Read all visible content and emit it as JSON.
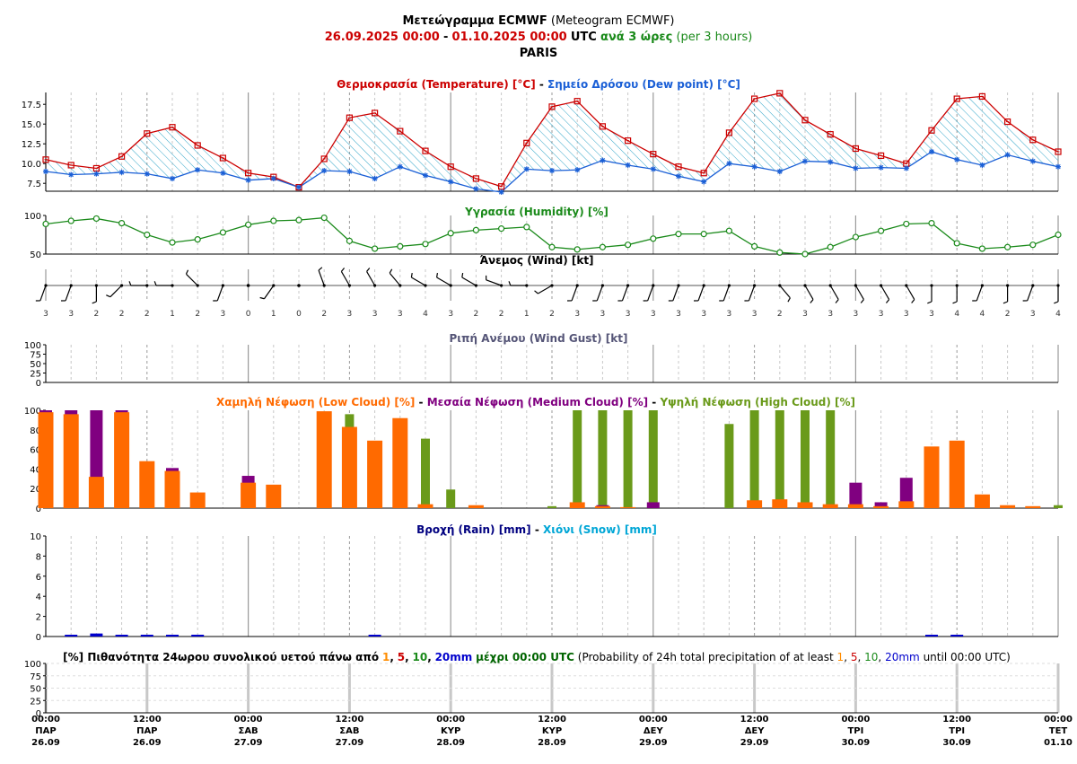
{
  "header": {
    "title_bold": "Μετεώγραμμα ECMWF",
    "title_rest": "(Meteogram ECMWF)",
    "date_start": "26.09.2025 00:00",
    "sep": "-",
    "date_end": "01.10.2025 00:00",
    "utc": "UTC",
    "interval_bold": "ανά 3 ώρες",
    "interval_rest": "(per 3 hours)",
    "location": "PARIS"
  },
  "colors": {
    "temperature": "#cc0000",
    "dewpoint": "#1a5fd6",
    "humidity": "#1a8a1a",
    "hatch": "#33a6c9",
    "low_cloud": "#ff6a00",
    "medium_cloud": "#800080",
    "high_cloud": "#6a9a1a",
    "rain": "#0000cc",
    "gust_title": "#555577"
  },
  "time_axis": {
    "tick_labels": [
      {
        "time": "00:00",
        "day": "ΠΑΡ",
        "date": "26.09"
      },
      {
        "time": "12:00",
        "day": "ΠΑΡ",
        "date": "26.09"
      },
      {
        "time": "00:00",
        "day": "ΣΑΒ",
        "date": "27.09"
      },
      {
        "time": "12:00",
        "day": "ΣΑΒ",
        "date": "27.09"
      },
      {
        "time": "00:00",
        "day": "ΚΥΡ",
        "date": "28.09"
      },
      {
        "time": "12:00",
        "day": "ΚΥΡ",
        "date": "28.09"
      },
      {
        "time": "00:00",
        "day": "ΔΕΥ",
        "date": "29.09"
      },
      {
        "time": "12:00",
        "day": "ΔΕΥ",
        "date": "29.09"
      },
      {
        "time": "00:00",
        "day": "ΤΡΙ",
        "date": "30.09"
      },
      {
        "time": "12:00",
        "day": "ΤΡΙ",
        "date": "30.09"
      },
      {
        "time": "00:00",
        "day": "ΤΕΤ",
        "date": "01.10"
      }
    ]
  },
  "chart_data": [
    {
      "type": "line",
      "title_a": "Θερμοκρασία (Temperature) [°C]",
      "title_sep": "-",
      "title_b": "Σημείο Δρόσου (Dew point) [°C]",
      "ylim": [
        6.5,
        19
      ],
      "yticks": [
        7.5,
        10.0,
        12.5,
        15.0,
        17.5
      ],
      "ytick_labels": [
        "7.5",
        "10.0",
        "12.5",
        "15.0",
        "17.5"
      ],
      "series": [
        {
          "values": [
            10.5,
            9.8,
            9.4,
            10.9,
            13.8,
            14.6,
            12.3,
            10.7,
            8.8,
            8.3,
            7.0,
            10.6,
            15.8,
            16.4,
            14.1,
            11.6,
            9.6,
            8.1,
            7.1,
            12.6,
            17.2,
            17.9,
            14.7,
            12.9,
            11.2,
            9.6,
            8.8,
            13.9,
            18.2,
            18.9,
            15.5,
            13.7,
            11.9,
            11.0,
            10.0,
            14.2,
            18.2,
            18.5,
            15.3,
            13.0,
            11.5
          ]
        },
        {
          "values": [
            9.0,
            8.6,
            8.7,
            8.9,
            8.7,
            8.1,
            9.2,
            8.8,
            7.9,
            8.1,
            7.0,
            9.1,
            9.0,
            8.1,
            9.6,
            8.5,
            7.7,
            6.8,
            6.4,
            9.3,
            9.1,
            9.2,
            10.4,
            9.8,
            9.3,
            8.4,
            7.7,
            10.0,
            9.6,
            9.0,
            10.3,
            10.2,
            9.4,
            9.5,
            9.4,
            11.5,
            10.5,
            9.8,
            11.1,
            10.3,
            9.6
          ]
        }
      ]
    },
    {
      "type": "line",
      "title": "Υγρασία (Humidity) [%]",
      "ylim": [
        50,
        100
      ],
      "ytick_labels": [
        "100",
        "50"
      ],
      "values": [
        89,
        93,
        96,
        90,
        75,
        65,
        69,
        78,
        88,
        93,
        94,
        97,
        67,
        57,
        60,
        63,
        77,
        81,
        83,
        85,
        59,
        56,
        59,
        62,
        70,
        76,
        76,
        80,
        60,
        52,
        50,
        59,
        72,
        80,
        89,
        90,
        64,
        57,
        59,
        62,
        75
      ]
    },
    {
      "type": "scatter",
      "title": "Άνεμος (Wind) [kt]",
      "speeds": [
        "3",
        "3",
        "2",
        "2",
        "2",
        "1",
        "2",
        "3",
        "0",
        "1",
        "0",
        "2",
        "3",
        "3",
        "3",
        "4",
        "3",
        "2",
        "2",
        "1",
        "2",
        "3",
        "3",
        "3",
        "3",
        "3",
        "3",
        "3",
        "3",
        "2",
        "3",
        "3",
        "3",
        "3",
        "3",
        "3",
        "4",
        "4",
        "2",
        "3",
        "4"
      ],
      "directions_deg": [
        200,
        200,
        180,
        225,
        270,
        270,
        315,
        200,
        0,
        215,
        0,
        340,
        330,
        330,
        320,
        300,
        300,
        300,
        290,
        270,
        240,
        200,
        200,
        200,
        200,
        200,
        200,
        200,
        200,
        140,
        150,
        150,
        150,
        150,
        150,
        180,
        180,
        200,
        180,
        200,
        180
      ]
    },
    {
      "type": "bar",
      "title": "Ριπή Ανέμου (Wind Gust) [kt]",
      "ylim": [
        0,
        100
      ],
      "ytick_labels": [
        "100",
        "75",
        "50",
        "25",
        "0"
      ],
      "values": []
    },
    {
      "type": "bar",
      "title_low": "Χαμηλή Νέφωση (Low Cloud) [%]",
      "title_mid": "Μεσαία Νέφωση (Medium Cloud) [%]",
      "title_high": "Υψηλή Νέφωση (High Cloud) [%]",
      "title_sep": "-",
      "ylim": [
        0,
        100
      ],
      "ytick_labels": [
        "100",
        "80",
        "60",
        "40",
        "20",
        "0"
      ],
      "series": [
        {
          "values": [
            98,
            96,
            32,
            98,
            48,
            38,
            16,
            0,
            26,
            24,
            0,
            99,
            83,
            69,
            92,
            4,
            0,
            3,
            0,
            0,
            0,
            6,
            2,
            1,
            0,
            0,
            0,
            0,
            8,
            9,
            6,
            4,
            4,
            2,
            7,
            63,
            69,
            14,
            3,
            2,
            0
          ]
        },
        {
          "values": [
            100,
            100,
            100,
            100,
            0,
            41,
            0,
            0,
            33,
            0,
            0,
            0,
            0,
            0,
            0,
            0,
            0,
            0,
            0,
            0,
            0,
            0,
            3,
            0,
            6,
            0,
            0,
            0,
            0,
            0,
            0,
            0,
            26,
            6,
            31,
            0,
            0,
            0,
            0,
            0,
            0
          ]
        },
        {
          "values": [
            0,
            0,
            0,
            0,
            0,
            0,
            0,
            0,
            0,
            0,
            0,
            0,
            96,
            0,
            0,
            71,
            19,
            0,
            0,
            0,
            2,
            100,
            100,
            100,
            100,
            0,
            0,
            86,
            100,
            100,
            100,
            100,
            0,
            0,
            0,
            0,
            0,
            0,
            0,
            0,
            3
          ]
        }
      ]
    },
    {
      "type": "bar",
      "title_rain": "Βροχή (Rain) [mm]",
      "title_sep": "-",
      "title_snow": "Χιόνι (Snow) [mm]",
      "ylim": [
        0,
        10
      ],
      "ytick_labels": [
        "10",
        "8",
        "6",
        "4",
        "2",
        "0"
      ],
      "values": [
        0,
        0.15,
        0.3,
        0.1,
        0.1,
        0.15,
        0.1,
        0,
        0,
        0,
        0,
        0,
        0,
        0.05,
        0,
        0,
        0,
        0,
        0,
        0,
        0,
        0,
        0,
        0,
        0,
        0,
        0,
        0,
        0,
        0,
        0,
        0,
        0,
        0,
        0,
        0.05,
        0.05,
        0,
        0,
        0,
        0
      ]
    },
    {
      "type": "bar",
      "title_bold": "[%] Πιθανότητα 24ωρου συνολικού υετού πάνω από",
      "title_rest": "(Probability of 24h total precipitation of at least",
      "thr1": "1",
      "thr5": "5",
      "thr10": "10",
      "thr20": "20mm",
      "comma": ",",
      "until_bold": "μέχρι 00:00 UTC",
      "until_rest": "until 00:00 UTC)",
      "ylim": [
        0,
        100
      ],
      "ytick_labels": [
        "100",
        "75",
        "50",
        "25",
        "0"
      ],
      "values": []
    }
  ]
}
